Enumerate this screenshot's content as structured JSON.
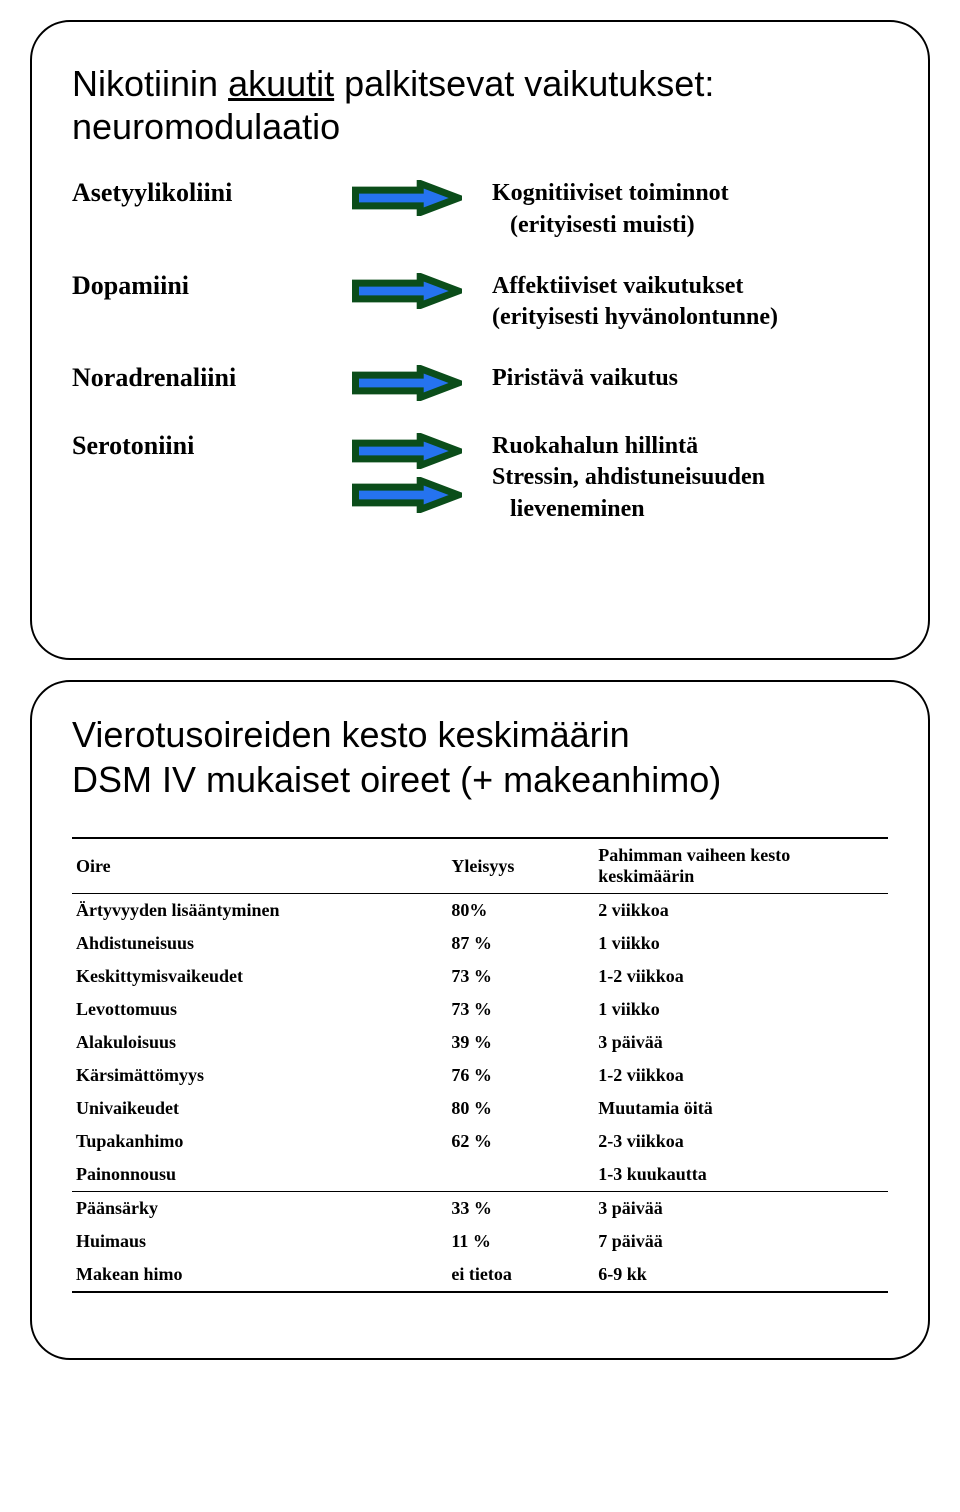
{
  "slide1": {
    "title_pre": "Nikotiinin ",
    "title_underline": "akuutit",
    "title_post": " palkitsevat vaikutukset: neuromodulaatio",
    "arrow": {
      "outline_color": "#0b4d1a",
      "fill_color": "#2573ef",
      "outline_width": 7,
      "width": 110,
      "height": 36
    },
    "rows": [
      {
        "label": "Asetyylikoliini",
        "arrows": 1,
        "effects": [
          "Kognitiiviset toiminnot",
          "   (erityisesti muisti)"
        ]
      },
      {
        "label": "Dopamiini",
        "arrows": 1,
        "effects": [
          "Affektiiviset vaikutukset",
          "(erityisesti hyvänolontunne)"
        ]
      },
      {
        "label": "Noradrenaliini",
        "arrows": 1,
        "effects": [
          "Piristävä vaikutus"
        ]
      },
      {
        "label": "Serotoniini",
        "arrows": 2,
        "effects": [
          "Ruokahalun hillintä",
          "Stressin, ahdistuneisuuden",
          "   lieveneminen"
        ]
      }
    ]
  },
  "slide2": {
    "title_line1": "Vierotusoireiden kesto keskimäärin",
    "title_line2": "DSM IV mukaiset oireet (+ makeanhimo)",
    "headers": {
      "oire": "Oire",
      "yleisyys": "Yleisyys",
      "kesto": "Pahimman vaiheen kesto keskimäärin"
    },
    "group1": [
      {
        "oire": "Ärtyvyyden lisääntyminen",
        "yleisyys": "80%",
        "kesto": "2 viikkoa"
      },
      {
        "oire": "Ahdistuneisuus",
        "yleisyys": "87 %",
        "kesto": "1 viikko"
      },
      {
        "oire": "Keskittymisvaikeudet",
        "yleisyys": "73 %",
        "kesto": "1-2 viikkoa"
      },
      {
        "oire": "Levottomuus",
        "yleisyys": "73 %",
        "kesto": "1 viikko"
      },
      {
        "oire": "Alakuloisuus",
        "yleisyys": "39 %",
        "kesto": "3 päivää"
      },
      {
        "oire": "Kärsimättömyys",
        "yleisyys": "76 %",
        "kesto": "1-2 viikkoa"
      },
      {
        "oire": "Univaikeudet",
        "yleisyys": "80 %",
        "kesto": "Muutamia öitä"
      },
      {
        "oire": "Tupakanhimo",
        "yleisyys": "62 %",
        "kesto": "2-3 viikkoa"
      },
      {
        "oire": "Painonnousu",
        "yleisyys": "",
        "kesto": "1-3 kuukautta"
      }
    ],
    "group2": [
      {
        "oire": "Päänsärky",
        "yleisyys": "33 %",
        "kesto": "3 päivää"
      },
      {
        "oire": "Huimaus",
        "yleisyys": "11 %",
        "kesto": "7 päivää"
      },
      {
        "oire": "Makean himo",
        "yleisyys": "ei tietoa",
        "kesto": "6-9 kk"
      }
    ]
  }
}
